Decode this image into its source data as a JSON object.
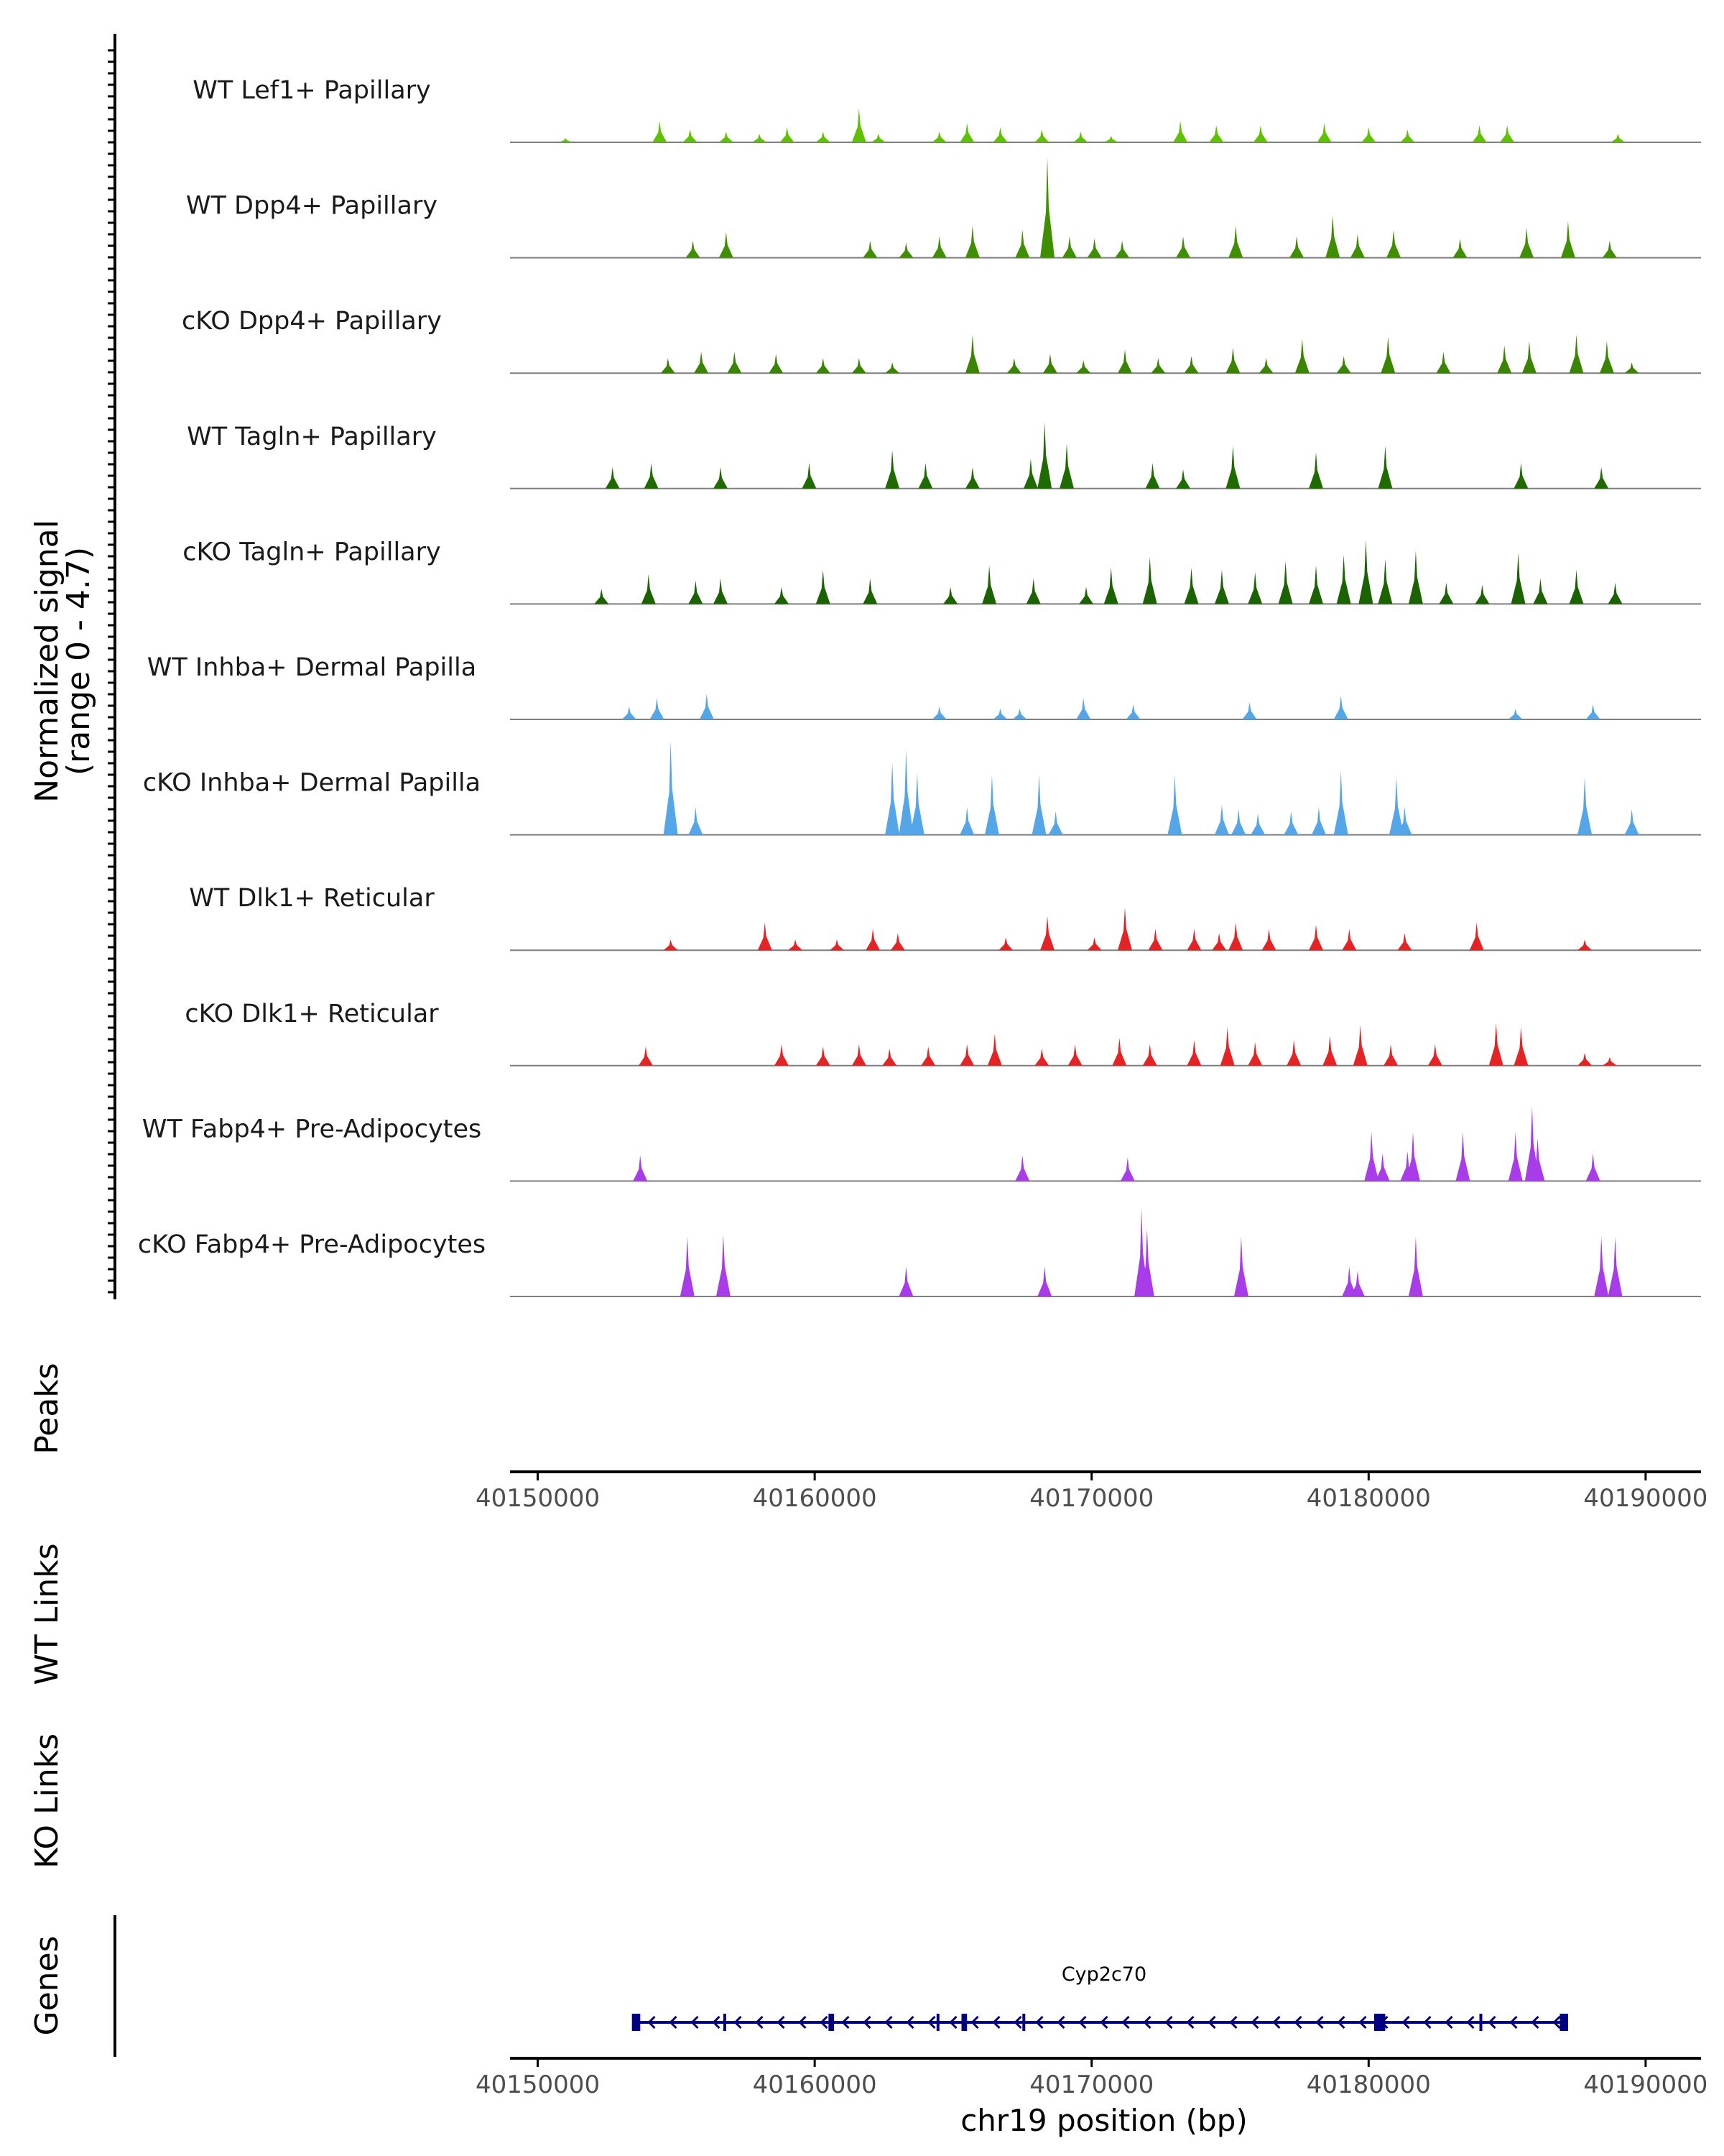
{
  "chart_data": {
    "type": "area",
    "title": "",
    "ylabel_line1": "Normalized signal",
    "ylabel_line2": "(range 0 - 4.7)",
    "ylim": [
      0,
      4.7
    ],
    "xlabel": "chr19 position (bp)",
    "xlim": [
      40149000,
      40192000
    ],
    "xticks": [
      40150000,
      40160000,
      40170000,
      40180000,
      40190000
    ],
    "xtick_labels": [
      "40150000",
      "40160000",
      "40170000",
      "40180000",
      "40190000"
    ],
    "panels": {
      "peaks": "Peaks",
      "wt_links": "WT Links",
      "ko_links": "KO Links",
      "genes": "Genes"
    },
    "series": [
      {
        "name": "WT Lef1+ Papillary",
        "color": "#5ec200",
        "peaks": [
          [
            40151000,
            0.2
          ],
          [
            40154400,
            1.0
          ],
          [
            40155500,
            0.6
          ],
          [
            40156800,
            0.5
          ],
          [
            40158000,
            0.4
          ],
          [
            40159000,
            0.7
          ],
          [
            40160300,
            0.5
          ],
          [
            40161600,
            1.6
          ],
          [
            40162300,
            0.4
          ],
          [
            40164500,
            0.5
          ],
          [
            40165500,
            0.9
          ],
          [
            40166700,
            0.7
          ],
          [
            40168200,
            0.6
          ],
          [
            40169600,
            0.5
          ],
          [
            40170700,
            0.3
          ],
          [
            40173200,
            1.0
          ],
          [
            40174500,
            0.8
          ],
          [
            40176100,
            0.8
          ],
          [
            40178400,
            0.9
          ],
          [
            40180000,
            0.7
          ],
          [
            40181400,
            0.6
          ],
          [
            40184000,
            0.8
          ],
          [
            40185000,
            0.8
          ],
          [
            40189000,
            0.4
          ]
        ]
      },
      {
        "name": "WT Dpp4+ Papillary",
        "color": "#3f8f00",
        "peaks": [
          [
            40155600,
            0.8
          ],
          [
            40156800,
            1.2
          ],
          [
            40162000,
            0.8
          ],
          [
            40163300,
            0.7
          ],
          [
            40164500,
            1.0
          ],
          [
            40165700,
            1.5
          ],
          [
            40167500,
            1.3
          ],
          [
            40168400,
            4.7
          ],
          [
            40169200,
            1.0
          ],
          [
            40170100,
            0.9
          ],
          [
            40171100,
            0.8
          ],
          [
            40173300,
            1.0
          ],
          [
            40175200,
            1.5
          ],
          [
            40177400,
            1.0
          ],
          [
            40178700,
            2.0
          ],
          [
            40179600,
            1.1
          ],
          [
            40180900,
            1.3
          ],
          [
            40183300,
            0.9
          ],
          [
            40185700,
            1.4
          ],
          [
            40187200,
            1.7
          ],
          [
            40188700,
            0.8
          ]
        ]
      },
      {
        "name": "cKO Dpp4+ Papillary",
        "color": "#3a8500",
        "peaks": [
          [
            40154700,
            0.7
          ],
          [
            40155900,
            1.0
          ],
          [
            40157100,
            1.0
          ],
          [
            40158600,
            0.9
          ],
          [
            40160300,
            0.7
          ],
          [
            40161600,
            0.7
          ],
          [
            40162800,
            0.5
          ],
          [
            40165700,
            1.8
          ],
          [
            40167200,
            0.7
          ],
          [
            40168500,
            0.9
          ],
          [
            40169700,
            0.6
          ],
          [
            40171200,
            1.1
          ],
          [
            40172400,
            0.7
          ],
          [
            40173600,
            0.8
          ],
          [
            40175100,
            1.2
          ],
          [
            40176300,
            0.7
          ],
          [
            40177600,
            1.6
          ],
          [
            40179100,
            0.8
          ],
          [
            40180700,
            1.7
          ],
          [
            40182700,
            1.0
          ],
          [
            40184900,
            1.3
          ],
          [
            40185800,
            1.5
          ],
          [
            40187500,
            1.8
          ],
          [
            40188600,
            1.5
          ],
          [
            40189500,
            0.5
          ]
        ]
      },
      {
        "name": "WT Tagln+ Papillary",
        "color": "#1f6b00",
        "peaks": [
          [
            40152700,
            1.0
          ],
          [
            40154100,
            1.2
          ],
          [
            40156600,
            1.0
          ],
          [
            40159800,
            1.2
          ],
          [
            40162800,
            1.8
          ],
          [
            40164000,
            1.2
          ],
          [
            40165700,
            1.0
          ],
          [
            40167800,
            1.4
          ],
          [
            40168300,
            3.1
          ],
          [
            40169100,
            2.1
          ],
          [
            40172200,
            1.2
          ],
          [
            40173300,
            0.9
          ],
          [
            40175100,
            2.0
          ],
          [
            40178100,
            1.7
          ],
          [
            40180600,
            2.0
          ],
          [
            40185500,
            1.2
          ],
          [
            40188400,
            1.0
          ]
        ]
      },
      {
        "name": "cKO Tagln+ Papillary",
        "color": "#1b6300",
        "peaks": [
          [
            40152300,
            0.7
          ],
          [
            40154000,
            1.4
          ],
          [
            40155700,
            1.1
          ],
          [
            40156600,
            1.2
          ],
          [
            40158800,
            0.8
          ],
          [
            40160300,
            1.6
          ],
          [
            40162000,
            1.2
          ],
          [
            40164900,
            0.8
          ],
          [
            40166300,
            1.8
          ],
          [
            40167900,
            1.2
          ],
          [
            40169800,
            0.8
          ],
          [
            40170700,
            1.7
          ],
          [
            40172100,
            2.2
          ],
          [
            40173600,
            1.7
          ],
          [
            40174700,
            1.6
          ],
          [
            40175900,
            1.5
          ],
          [
            40177000,
            2.0
          ],
          [
            40178100,
            1.8
          ],
          [
            40179100,
            2.3
          ],
          [
            40179900,
            3.0
          ],
          [
            40180600,
            2.1
          ],
          [
            40181700,
            2.5
          ],
          [
            40182800,
            1.0
          ],
          [
            40184100,
            0.9
          ],
          [
            40185400,
            2.4
          ],
          [
            40186200,
            1.2
          ],
          [
            40187500,
            1.6
          ],
          [
            40188900,
            1.0
          ]
        ]
      },
      {
        "name": "WT Inhba+ Dermal Papilla",
        "color": "#55a6e8",
        "peaks": [
          [
            40153300,
            0.6
          ],
          [
            40154300,
            1.0
          ],
          [
            40156100,
            1.2
          ],
          [
            40164500,
            0.6
          ],
          [
            40166700,
            0.5
          ],
          [
            40167400,
            0.5
          ],
          [
            40169700,
            1.0
          ],
          [
            40171500,
            0.7
          ],
          [
            40175700,
            0.8
          ],
          [
            40179000,
            1.1
          ],
          [
            40185300,
            0.5
          ],
          [
            40188100,
            0.7
          ]
        ]
      },
      {
        "name": "cKO Inhba+ Dermal Papilla",
        "color": "#55a6e8",
        "peaks": [
          [
            40154800,
            4.4
          ],
          [
            40155700,
            1.3
          ],
          [
            40162800,
            3.4
          ],
          [
            40163300,
            4.0
          ],
          [
            40163700,
            2.9
          ],
          [
            40165500,
            1.3
          ],
          [
            40166400,
            2.8
          ],
          [
            40168100,
            2.8
          ],
          [
            40168700,
            1.1
          ],
          [
            40173000,
            2.8
          ],
          [
            40174700,
            1.4
          ],
          [
            40175300,
            1.2
          ],
          [
            40176000,
            1.0
          ],
          [
            40177200,
            1.1
          ],
          [
            40178200,
            1.3
          ],
          [
            40179000,
            3.0
          ],
          [
            40181000,
            2.7
          ],
          [
            40181300,
            1.3
          ],
          [
            40187800,
            2.7
          ],
          [
            40189500,
            1.2
          ]
        ]
      },
      {
        "name": "WT Dlk1+ Reticular",
        "color": "#e42424",
        "peaks": [
          [
            40154800,
            0.5
          ],
          [
            40158200,
            1.3
          ],
          [
            40159300,
            0.5
          ],
          [
            40160800,
            0.5
          ],
          [
            40162100,
            1.0
          ],
          [
            40163000,
            0.8
          ],
          [
            40166900,
            0.6
          ],
          [
            40168400,
            1.6
          ],
          [
            40170100,
            0.6
          ],
          [
            40171200,
            2.0
          ],
          [
            40172300,
            1.0
          ],
          [
            40173700,
            1.0
          ],
          [
            40174600,
            0.8
          ],
          [
            40175200,
            1.3
          ],
          [
            40176400,
            1.0
          ],
          [
            40178100,
            1.2
          ],
          [
            40179300,
            1.0
          ],
          [
            40181300,
            0.8
          ],
          [
            40183900,
            1.3
          ],
          [
            40187800,
            0.5
          ]
        ]
      },
      {
        "name": "cKO Dlk1+ Reticular",
        "color": "#e42424",
        "peaks": [
          [
            40153900,
            0.9
          ],
          [
            40158800,
            1.0
          ],
          [
            40160300,
            0.9
          ],
          [
            40161600,
            1.0
          ],
          [
            40162700,
            0.8
          ],
          [
            40164100,
            0.9
          ],
          [
            40165500,
            1.0
          ],
          [
            40166500,
            1.5
          ],
          [
            40168200,
            0.8
          ],
          [
            40169400,
            1.0
          ],
          [
            40171000,
            1.3
          ],
          [
            40172100,
            1.0
          ],
          [
            40173700,
            1.2
          ],
          [
            40174900,
            1.8
          ],
          [
            40175900,
            1.1
          ],
          [
            40177300,
            1.2
          ],
          [
            40178600,
            1.4
          ],
          [
            40179700,
            1.9
          ],
          [
            40180800,
            1.0
          ],
          [
            40182400,
            1.0
          ],
          [
            40184600,
            2.0
          ],
          [
            40185500,
            1.8
          ],
          [
            40187800,
            0.6
          ],
          [
            40188700,
            0.4
          ]
        ]
      },
      {
        "name": "WT Fabp4+ Pre-Adipocytes",
        "color": "#a83ce8",
        "peaks": [
          [
            40153700,
            1.2
          ],
          [
            40167500,
            1.2
          ],
          [
            40171300,
            1.1
          ],
          [
            40180100,
            2.3
          ],
          [
            40180500,
            1.3
          ],
          [
            40181400,
            1.4
          ],
          [
            40181600,
            2.3
          ],
          [
            40183400,
            2.3
          ],
          [
            40185300,
            2.3
          ],
          [
            40185900,
            3.5
          ],
          [
            40186100,
            2.0
          ],
          [
            40188100,
            1.3
          ]
        ]
      },
      {
        "name": "cKO Fabp4+ Pre-Adipocytes",
        "color": "#a83ce8",
        "peaks": [
          [
            40155400,
            2.8
          ],
          [
            40156700,
            2.9
          ],
          [
            40163300,
            1.4
          ],
          [
            40168300,
            1.4
          ],
          [
            40171800,
            4.1
          ],
          [
            40172000,
            3.2
          ],
          [
            40175400,
            2.8
          ],
          [
            40179300,
            1.4
          ],
          [
            40179600,
            1.2
          ],
          [
            40181700,
            2.8
          ],
          [
            40188400,
            2.8
          ],
          [
            40188900,
            2.8
          ]
        ]
      }
    ],
    "gene": {
      "name": "Cyp2c70",
      "strand": "-",
      "color": "#000080",
      "start": 40153500,
      "end": 40187200,
      "exons": [
        [
          40153400,
          40153700
        ],
        [
          40156700,
          40156800
        ],
        [
          40160500,
          40160700
        ],
        [
          40164400,
          40164500
        ],
        [
          40165300,
          40165500
        ],
        [
          40167500,
          40167600
        ],
        [
          40180200,
          40180600
        ],
        [
          40184000,
          40184100
        ],
        [
          40186900,
          40187200
        ]
      ]
    }
  }
}
